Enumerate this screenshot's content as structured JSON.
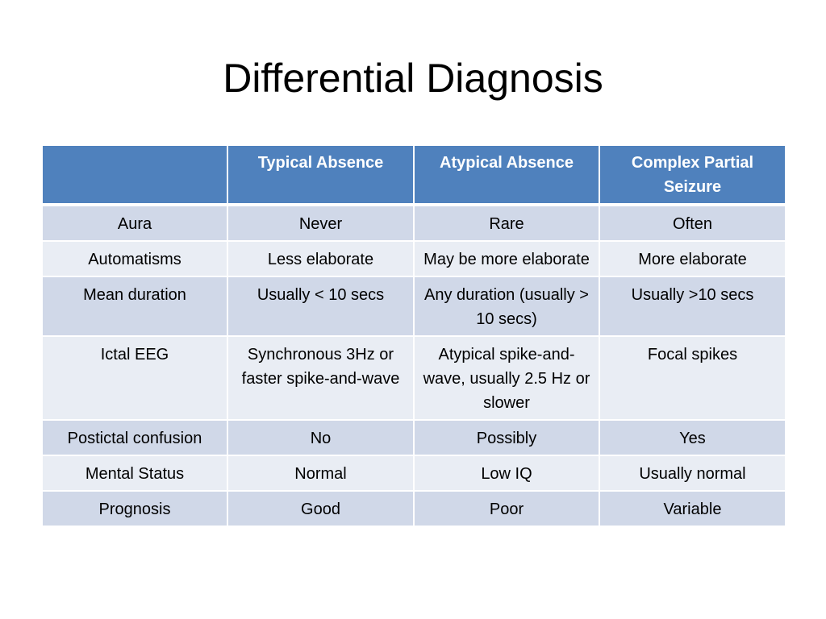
{
  "slide": {
    "title": "Differential Diagnosis"
  },
  "table": {
    "headers": [
      "",
      "Typical Absence",
      "Atypical Absence",
      "Complex Partial Seizure"
    ],
    "rows": [
      [
        "Aura",
        "Never",
        "Rare",
        "Often"
      ],
      [
        "Automatisms",
        "Less elaborate",
        "May be more elaborate",
        "More elaborate"
      ],
      [
        "Mean duration",
        "Usually < 10 secs",
        "Any duration (usually > 10 secs)",
        "Usually >10 secs"
      ],
      [
        "Ictal EEG",
        "Synchronous 3Hz or faster spike-and-wave",
        "Atypical spike-and-wave, usually 2.5 Hz or slower",
        "Focal spikes"
      ],
      [
        "Postictal confusion",
        "No",
        "Possibly",
        "Yes"
      ],
      [
        "Mental Status",
        "Normal",
        "Low IQ",
        "Usually normal"
      ],
      [
        "Prognosis",
        "Good",
        "Poor",
        "Variable"
      ]
    ]
  },
  "colors": {
    "header_bg": "#4f81bd",
    "row_odd_bg": "#d0d8e8",
    "row_even_bg": "#e9edf4"
  }
}
